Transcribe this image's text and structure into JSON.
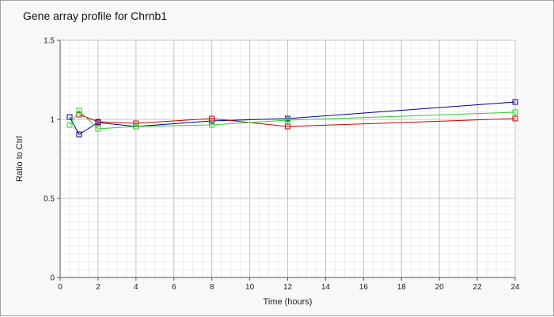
{
  "chart_data": {
    "type": "line",
    "title": "Gene array profile for Chrnb1",
    "xlabel": "Time (hours)",
    "ylabel": "Ratio to Ctrl",
    "xlim": [
      0,
      24
    ],
    "ylim": [
      0,
      1.5
    ],
    "x_ticks": [
      0,
      2,
      4,
      6,
      8,
      10,
      12,
      14,
      16,
      18,
      20,
      22,
      24
    ],
    "y_ticks": [
      0,
      0.5,
      1,
      1.5
    ],
    "x_tick_labels": [
      "0",
      "2",
      "4",
      "6",
      "8",
      "10",
      "12",
      "14",
      "16",
      "18",
      "20",
      "22",
      "24"
    ],
    "y_tick_labels": [
      "0",
      "0.5",
      "1",
      "1.5"
    ],
    "grid": true,
    "legend": "none",
    "marker": "square",
    "series": [
      {
        "color": "#00008b",
        "x": [
          0.5,
          1,
          2,
          4,
          8,
          12,
          24
        ],
        "y": [
          1.015,
          0.905,
          0.98,
          0.955,
          0.99,
          1.005,
          1.11
        ]
      },
      {
        "color": "#cc0000",
        "x": [
          1,
          2,
          4,
          8,
          12,
          24
        ],
        "y": [
          1.03,
          0.985,
          0.975,
          1.005,
          0.955,
          1.005
        ]
      },
      {
        "color": "#33cc33",
        "x": [
          0.5,
          1,
          2,
          4,
          8,
          12,
          24
        ],
        "y": [
          0.965,
          1.055,
          0.94,
          0.955,
          0.965,
          0.995,
          1.045
        ]
      }
    ]
  }
}
